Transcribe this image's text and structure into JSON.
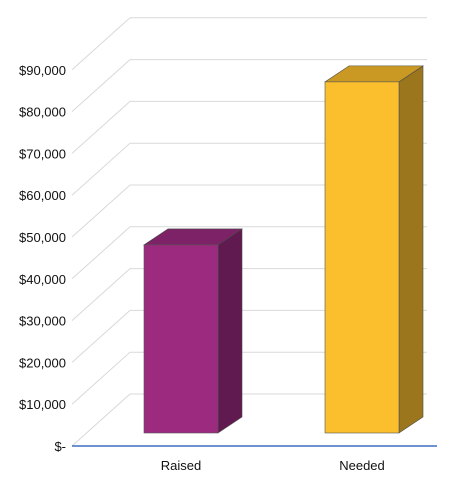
{
  "chart_data": {
    "type": "bar",
    "style": "3d-column",
    "categories": [
      "Raised",
      "Needed"
    ],
    "values": [
      45000,
      84000
    ],
    "colors": {
      "Raised": "#9c2a7f",
      "Needed": "#fbbf2d",
      "axis": "#3f6fbf",
      "grid": "#d9d9d9"
    },
    "ylim": [
      0,
      100000
    ],
    "y_tick_labels": [
      "$-",
      "$10,000",
      "$20,000",
      "$30,000",
      "$40,000",
      "$50,000",
      "$60,000",
      "$70,000",
      "$80,000",
      "$90,000"
    ],
    "grid": true,
    "legend": "none"
  }
}
